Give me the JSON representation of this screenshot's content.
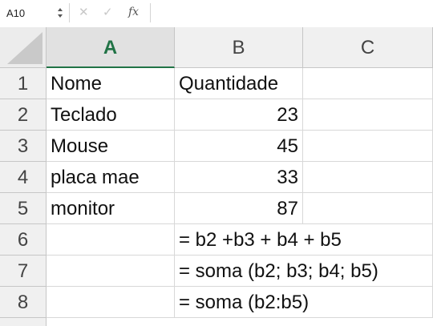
{
  "formula_bar": {
    "name_box": "A10",
    "cancel_icon": "✕",
    "enter_icon": "✓",
    "fx_label": "fx",
    "formula": ""
  },
  "columns": [
    "A",
    "B",
    "C"
  ],
  "active_column": "A",
  "rows": [
    "1",
    "2",
    "3",
    "4",
    "5",
    "6",
    "7",
    "8"
  ],
  "cells": {
    "A1": "Nome",
    "B1": "Quantidade",
    "A2": "Teclado",
    "B2": "23",
    "A3": "Mouse",
    "B3": "45",
    "A4": "placa mae",
    "B4": "33",
    "A5": "monitor",
    "B5": "87",
    "B6": "= b2 +b3 + b4 + b5",
    "B7": "= soma (b2; b3; b4; b5)",
    "B8": "= soma (b2:b5)"
  },
  "colors": {
    "accent": "#217346",
    "header_bg": "#f0f0f0",
    "grid_line": "#d8d8d8"
  }
}
